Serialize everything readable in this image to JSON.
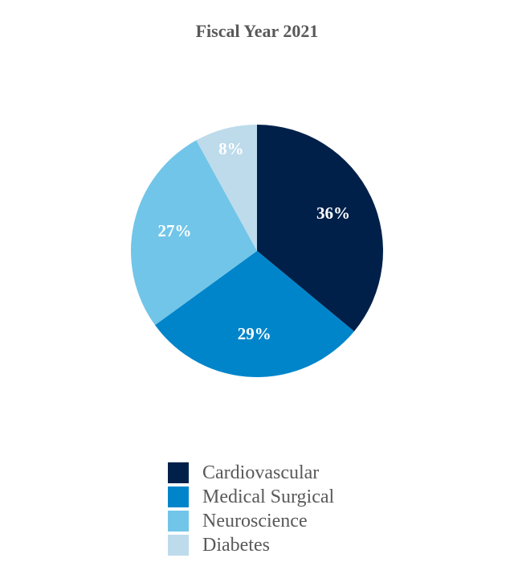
{
  "chart_data": {
    "type": "pie",
    "title": "Fiscal Year 2021",
    "slices": [
      {
        "label": "Cardiovascular",
        "value": 36,
        "display": "36%",
        "color": "#00204a"
      },
      {
        "label": "Medical Surgical",
        "value": 29,
        "display": "29%",
        "color": "#0085ca"
      },
      {
        "label": "Neuroscience",
        "value": 27,
        "display": "27%",
        "color": "#71c5e8"
      },
      {
        "label": "Diabetes",
        "value": 8,
        "display": "8%",
        "color": "#bddbeb"
      }
    ],
    "legend_position": "bottom"
  }
}
